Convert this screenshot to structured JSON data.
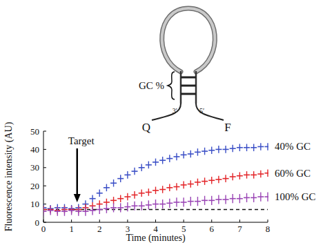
{
  "chart_data": {
    "type": "scatter",
    "x_label": "Time (minutes)",
    "y_label": "Fluorescence intensity (AU)",
    "xlim": [
      0,
      8
    ],
    "xticks": [
      0,
      1,
      2,
      3,
      4,
      5,
      6,
      7,
      8
    ],
    "ylim": [
      0,
      50
    ],
    "yticks": [
      0,
      10,
      20,
      30,
      40,
      50
    ],
    "grid": false,
    "legend": "right",
    "marker": "plus",
    "x": [
      0,
      0.25,
      0.5,
      0.75,
      1,
      1.25,
      1.5,
      1.75,
      2,
      2.25,
      2.5,
      2.75,
      3,
      3.25,
      3.5,
      3.75,
      4,
      4.25,
      4.5,
      4.75,
      5,
      5.25,
      5.5,
      5.75,
      6,
      6.25,
      6.5,
      6.75,
      7,
      7.25,
      7.5,
      7.75,
      8
    ],
    "series": [
      {
        "name": "40% GC",
        "color": "#3b4fc6",
        "values": [
          8,
          7.5,
          8,
          8,
          7.5,
          8,
          10,
          13,
          16,
          19,
          21.5,
          24,
          26,
          28,
          30,
          31.5,
          33,
          34,
          35,
          36,
          37,
          37.5,
          38.5,
          39,
          39.5,
          40,
          40,
          40.5,
          41,
          41,
          41,
          41.5,
          41.5
        ],
        "errors": [
          2,
          2,
          2,
          2,
          2,
          2,
          2,
          2,
          2,
          2,
          2,
          2,
          2,
          2,
          2,
          2,
          2,
          2,
          2,
          2,
          2,
          2,
          2,
          2,
          2,
          2,
          2,
          2,
          2,
          2,
          2,
          2,
          2
        ]
      },
      {
        "name": "60% GC",
        "color": "#e3262a",
        "values": [
          7,
          7,
          6.5,
          7,
          7,
          7,
          8,
          9,
          10,
          11,
          12,
          13,
          14,
          15,
          16,
          16.5,
          17.5,
          18,
          19,
          19.5,
          20.5,
          21,
          22,
          22.5,
          23,
          23.5,
          24,
          25,
          25.5,
          26,
          26,
          26.5,
          27
        ],
        "errors": [
          2,
          2,
          2,
          2,
          2,
          2,
          2,
          2,
          2,
          2,
          2,
          2,
          2,
          2,
          2,
          2,
          2,
          2,
          2,
          2,
          2,
          2,
          2,
          2,
          2,
          2,
          2,
          2,
          2,
          2,
          2,
          2,
          2
        ]
      },
      {
        "name": "100% GC",
        "color": "#9a45b5",
        "values": [
          6,
          6.5,
          6,
          6,
          6.5,
          6,
          6,
          6.5,
          7,
          7.5,
          8,
          8,
          8.5,
          9,
          9,
          9.5,
          10,
          10,
          10.5,
          11,
          11,
          11.5,
          11.5,
          12,
          12,
          12.5,
          12.5,
          13,
          13,
          13.5,
          13.5,
          14,
          14
        ],
        "errors": [
          2.5,
          2.5,
          2.5,
          2.5,
          2.5,
          2.5,
          2.5,
          2.5,
          2.5,
          2.5,
          2.5,
          2.5,
          2.5,
          2.5,
          2.5,
          2.5,
          2.5,
          2.5,
          2.5,
          2.5,
          2.5,
          2.5,
          2.5,
          2.5,
          2.5,
          2.5,
          2.5,
          2.5,
          2.5,
          2.5,
          2.5,
          2.5,
          2.5
        ]
      }
    ],
    "reference_line": {
      "y": 7,
      "line_style": "dashed"
    },
    "annotations": [
      {
        "text": "Target",
        "x": 1.2,
        "y": 11
      }
    ]
  },
  "diagram": {
    "stem_label": "GC %",
    "end_3": "3′",
    "end_5": "5′",
    "quencher": "Q",
    "fluorophore": "F"
  }
}
